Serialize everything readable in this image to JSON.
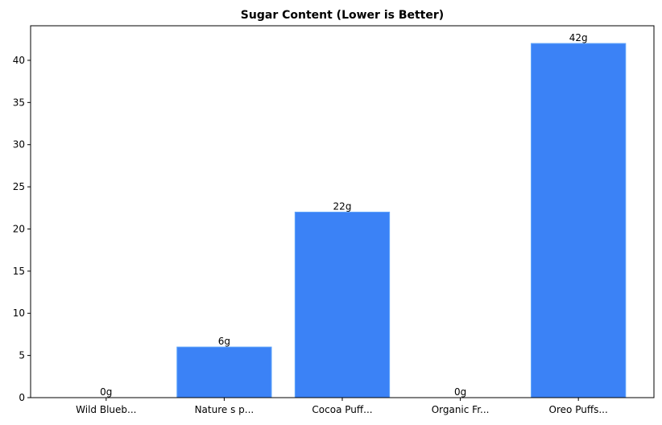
{
  "chart_data": {
    "type": "bar",
    "title": "Sugar Content (Lower is Better)",
    "xlabel": "",
    "ylabel": "",
    "categories": [
      "Wild Blueb...",
      "Nature s p...",
      "Cocoa Puff...",
      "Organic Fr...",
      "Oreo Puffs..."
    ],
    "values": [
      0,
      6,
      22,
      0,
      42
    ],
    "bar_labels": [
      "0g",
      "6g",
      "22g",
      "0g",
      "42g"
    ],
    "ylim": [
      0,
      44.1
    ],
    "yticks": [
      0,
      5,
      10,
      15,
      20,
      25,
      30,
      35,
      40
    ],
    "grid": false,
    "legend": null,
    "colors": {
      "bar": "#3b82f6",
      "bar_edge": "#60a5fa",
      "axis": "#000000"
    }
  }
}
